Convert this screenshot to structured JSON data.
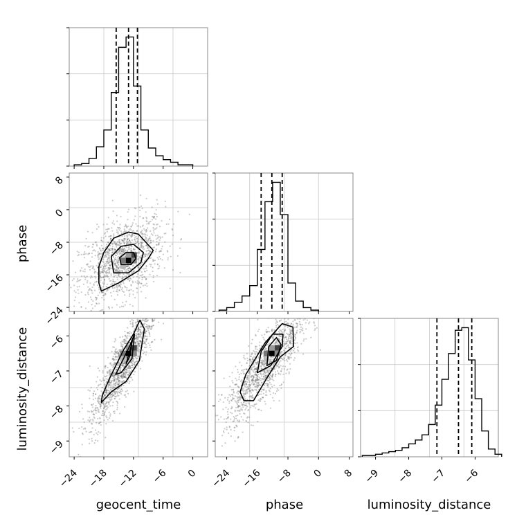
{
  "chart_data": [
    {
      "type": "histogram",
      "parameter": "geocent_time",
      "xlim": [
        -25,
        3
      ],
      "bin_edges": [
        -24,
        -22.5,
        -21,
        -19.5,
        -18,
        -16.5,
        -15,
        -13.5,
        -12,
        -10.5,
        -9,
        -7.5,
        -6,
        -4.5,
        -3,
        -1.5,
        0
      ],
      "counts": [
        1,
        2,
        6,
        15,
        28,
        57,
        92,
        100,
        62,
        28,
        14,
        8,
        5,
        3,
        1,
        1
      ],
      "quantiles": [
        -15.5,
        -13.0,
        -11.2
      ],
      "xticks": [
        -24,
        -18,
        -12,
        -6,
        0
      ],
      "grid": true
    },
    {
      "type": "scatter",
      "x_param": "geocent_time",
      "y_param": "phase",
      "xlim": [
        -25,
        3
      ],
      "ylim": [
        -25,
        9
      ],
      "center": [
        -13.0,
        -12.5
      ],
      "yticks": [
        8,
        0,
        -8,
        -16,
        -24
      ],
      "contours": [
        [
          [
            -18.5,
            -20
          ],
          [
            -15,
            -18
          ],
          [
            -11,
            -15
          ],
          [
            -9,
            -12
          ],
          [
            -8,
            -10
          ],
          [
            -11,
            -6
          ],
          [
            -13,
            -5.5
          ],
          [
            -16,
            -7
          ],
          [
            -18,
            -10.5
          ],
          [
            -19,
            -14
          ],
          [
            -19,
            -18
          ]
        ],
        [
          [
            -16,
            -15.5
          ],
          [
            -13,
            -15.5
          ],
          [
            -10.5,
            -13
          ],
          [
            -10,
            -10.5
          ],
          [
            -12,
            -8.5
          ],
          [
            -14.5,
            -9
          ],
          [
            -16.5,
            -11.5
          ]
        ],
        [
          [
            -14.5,
            -13.5
          ],
          [
            -12.5,
            -13.5
          ],
          [
            -11.5,
            -12
          ],
          [
            -12,
            -10.5
          ],
          [
            -13.5,
            -10.5
          ],
          [
            -14.8,
            -11.8
          ]
        ]
      ],
      "grid": true
    },
    {
      "type": "histogram",
      "parameter": "phase",
      "xlim": [
        -27,
        9
      ],
      "bin_edges": [
        -26,
        -24,
        -22,
        -20,
        -18,
        -16,
        -14,
        -12,
        -10,
        -8,
        -6,
        -4,
        -2,
        0
      ],
      "counts": [
        1,
        3,
        7,
        12,
        20,
        48,
        85,
        100,
        75,
        22,
        8,
        3,
        1
      ],
      "quantiles": [
        -15.0,
        -12.2,
        -9.5
      ],
      "xticks": [
        -24,
        -16,
        -8,
        0,
        8
      ],
      "grid": true
    },
    {
      "type": "scatter",
      "x_param": "geocent_time",
      "y_param": "luminosity_distance",
      "xlim": [
        -25,
        3
      ],
      "ylim": [
        -9.45,
        -5.5
      ],
      "center": [
        -13.0,
        -6.5
      ],
      "yticks": [
        -6,
        -7,
        -8,
        -9
      ],
      "contours": [
        [
          [
            -18.5,
            -7.9
          ],
          [
            -18.3,
            -7.7
          ],
          [
            -16.8,
            -7.2
          ],
          [
            -14,
            -6.4
          ],
          [
            -12,
            -5.95
          ],
          [
            -10.7,
            -5.55
          ],
          [
            -9.8,
            -5.8
          ],
          [
            -10.8,
            -6.7
          ],
          [
            -13.5,
            -7.3
          ],
          [
            -16.5,
            -7.6
          ]
        ],
        [
          [
            -15.6,
            -7.1
          ],
          [
            -12.8,
            -6.3
          ],
          [
            -11.8,
            -5.95
          ],
          [
            -12.3,
            -6.65
          ],
          [
            -14.5,
            -7.05
          ]
        ],
        [
          [
            -13.5,
            -6.8
          ],
          [
            -12.5,
            -6.3
          ],
          [
            -12.2,
            -6.1
          ],
          [
            -12.8,
            -6.6
          ]
        ]
      ],
      "grid": true
    },
    {
      "type": "scatter",
      "x_param": "phase",
      "y_param": "luminosity_distance",
      "xlim": [
        -27,
        9
      ],
      "ylim": [
        -9.45,
        -5.5
      ],
      "center": [
        -12.2,
        -6.5
      ],
      "yticks": [
        -6,
        -7,
        -8,
        -9
      ],
      "contours": [
        [
          [
            -19.5,
            -7.85
          ],
          [
            -17,
            -7.85
          ],
          [
            -13.5,
            -7.2
          ],
          [
            -10,
            -6.6
          ],
          [
            -6.5,
            -6.3
          ],
          [
            -6.7,
            -5.75
          ],
          [
            -9.5,
            -5.65
          ],
          [
            -14,
            -6.2
          ],
          [
            -19,
            -7.1
          ],
          [
            -20.5,
            -7.6
          ]
        ],
        [
          [
            -16,
            -7.05
          ],
          [
            -12.5,
            -6.85
          ],
          [
            -9.5,
            -6.3
          ],
          [
            -9.3,
            -5.95
          ],
          [
            -12,
            -5.95
          ],
          [
            -15,
            -6.45
          ]
        ],
        [
          [
            -13.5,
            -6.85
          ],
          [
            -11,
            -6.7
          ],
          [
            -9.8,
            -6.25
          ],
          [
            -11,
            -6.05
          ],
          [
            -13,
            -6.3
          ]
        ]
      ],
      "grid": true
    },
    {
      "type": "histogram",
      "parameter": "luminosity_distance",
      "xlim": [
        -9.45,
        -5.3
      ],
      "bin_edges": [
        -9.4,
        -9.2,
        -9.0,
        -8.8,
        -8.6,
        -8.4,
        -8.2,
        -8.0,
        -7.8,
        -7.6,
        -7.4,
        -7.2,
        -7.0,
        -6.8,
        -6.6,
        -6.4,
        -6.2,
        -6.0,
        -5.8,
        -5.6,
        -5.4,
        -5.2
      ],
      "counts": [
        1,
        1,
        2,
        3,
        4,
        5,
        7,
        10,
        13,
        17,
        25,
        40,
        60,
        80,
        98,
        100,
        75,
        45,
        20,
        6,
        2
      ],
      "quantiles": [
        -7.15,
        -6.5,
        -6.1
      ],
      "xticks": [
        -9,
        -8,
        -7,
        -6
      ],
      "grid": true
    }
  ],
  "labels": {
    "x1": "geocent_time",
    "x2": "phase",
    "x3": "luminosity_distance",
    "y2": "phase",
    "y3": "luminosity_distance"
  },
  "tick_labels": {
    "geocent_time": [
      "−24",
      "−18",
      "−12",
      "−6",
      "0"
    ],
    "phase_x": [
      "−24",
      "−16",
      "−8",
      "0",
      "8"
    ],
    "luminosity_distance_x": [
      "−9",
      "−8",
      "−7",
      "−6"
    ],
    "phase_y": [
      "8",
      "0",
      "−8",
      "−16",
      "−24"
    ],
    "luminosity_distance_y": [
      "−6",
      "−7",
      "−8",
      "−9"
    ]
  }
}
